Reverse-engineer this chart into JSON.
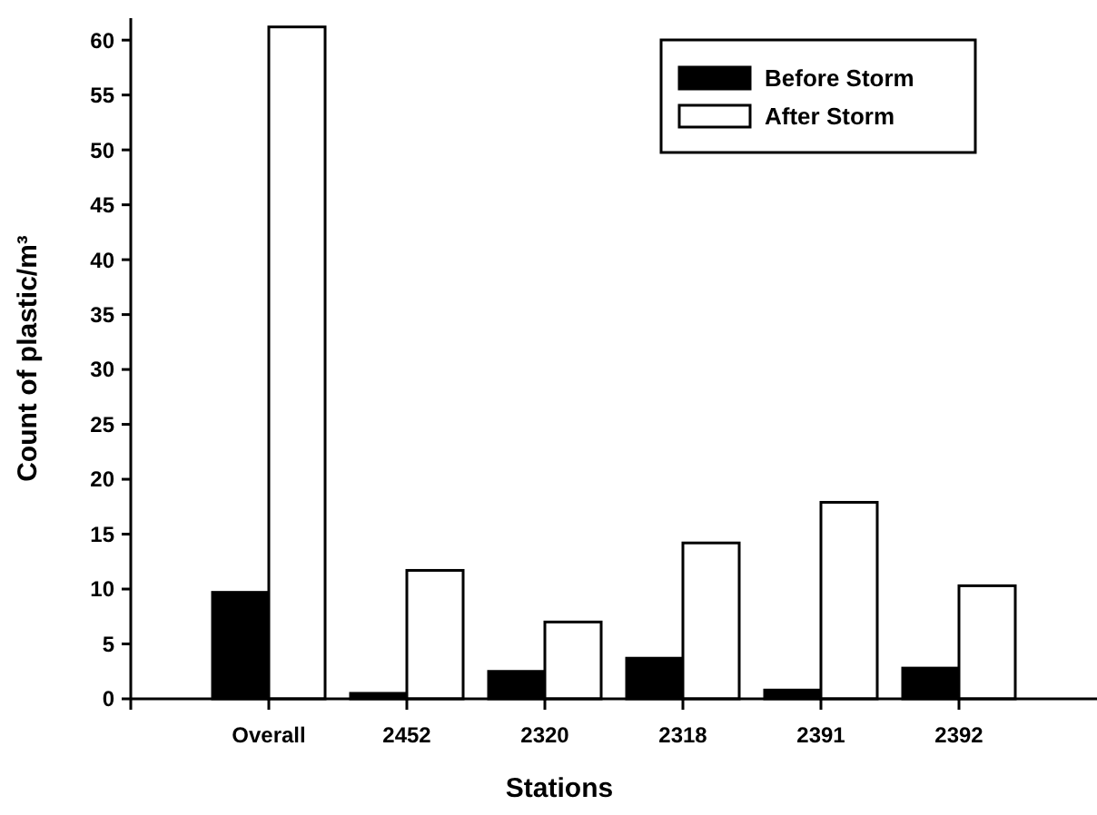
{
  "chart_data": {
    "type": "bar",
    "xlabel": "Stations",
    "ylabel": "Count of plastic/m³",
    "categories": [
      "Overall",
      "2452",
      "2320",
      "2318",
      "2391",
      "2392"
    ],
    "series": [
      {
        "name": "Before Storm",
        "color": "#000000",
        "values": [
          9.7,
          0.5,
          2.5,
          3.7,
          0.8,
          2.8
        ]
      },
      {
        "name": "After Storm",
        "color": "#ffffff",
        "values": [
          61.2,
          11.7,
          7.0,
          14.2,
          17.9,
          10.3
        ]
      }
    ],
    "ylim": [
      0,
      62
    ],
    "yticks": [
      0,
      5,
      10,
      15,
      20,
      25,
      30,
      35,
      40,
      45,
      50,
      55,
      60
    ],
    "legend": "top right"
  }
}
